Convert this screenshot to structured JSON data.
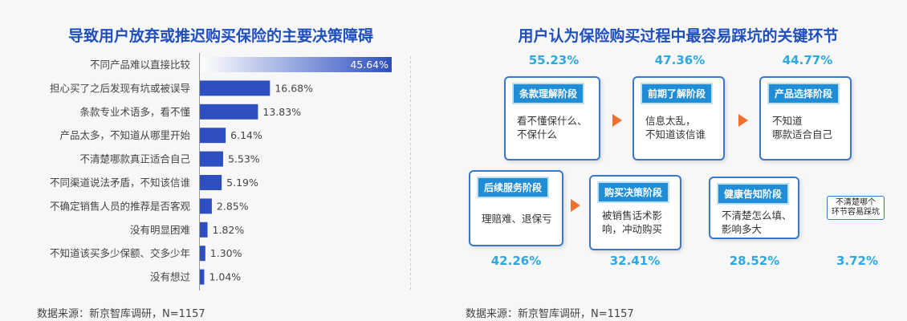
{
  "left": {
    "title": "导致用户放弃或推迟购买保险的主要决策障碍",
    "source": "数据来源：新京智库调研，N=1157"
  },
  "right": {
    "title": "用户认为保险购买过程中最容易踩坑的关键环节",
    "source": "数据来源：新京智库调研，N=1157",
    "stages": [
      {
        "tag": "条款理解阶段",
        "desc": "看不懂保什么、\n不保什么",
        "pct": "55.23%"
      },
      {
        "tag": "前期了解阶段",
        "desc": "信息太乱，\n不知道该信谁",
        "pct": "47.36%"
      },
      {
        "tag": "产品选择阶段",
        "desc": "不知道\n哪款适合自己",
        "pct": "44.77%"
      },
      {
        "tag": "后续服务阶段",
        "desc": "理赔难、退保亏",
        "pct": "42.26%"
      },
      {
        "tag": "购买决策阶段",
        "desc": "被销售话术影\n响，冲动购买",
        "pct": "32.41%"
      },
      {
        "tag": "健康告知阶段",
        "desc": "不清楚怎么填、\n影响多大",
        "pct": "28.52%"
      },
      {
        "tag": "",
        "desc": "不清楚哪个\n环节容易踩坑",
        "pct": "3.72%"
      }
    ],
    "arrow_color": "#f07030"
  },
  "chart_data": [
    {
      "type": "bar",
      "orientation": "horizontal",
      "title": "导致用户放弃或推迟购买保险的主要决策障碍",
      "categories": [
        "不同产品难以直接比较",
        "担心买了之后发现有坑或被误导",
        "条款专业术语多，看不懂",
        "产品太多，不知道从哪里开始",
        "不清楚哪款真正适合自己",
        "不同渠道说法矛盾，不知该信谁",
        "不确定销售人员的推荐是否客观",
        "没有明显困难",
        "不知道该买多少保额、交多少年",
        "没有想过"
      ],
      "values": [
        45.64,
        16.68,
        13.83,
        6.14,
        5.53,
        5.19,
        2.85,
        1.82,
        1.3,
        1.04
      ],
      "labels": [
        "45.64%",
        "16.68%",
        "13.83%",
        "6.14%",
        "5.53%",
        "5.19%",
        "2.85%",
        "1.82%",
        "1.30%",
        "1.04%"
      ],
      "xlim": [
        0,
        50
      ],
      "bar_color": "#2e4fbf"
    },
    {
      "type": "table",
      "title": "用户认为保险购买过程中最容易踩坑的关键环节",
      "categories": [
        "条款理解阶段",
        "前期了解阶段",
        "产品选择阶段",
        "后续服务阶段",
        "购买决策阶段",
        "健康告知阶段",
        "不清楚哪个环节容易踩坑"
      ],
      "values": [
        55.23,
        47.36,
        44.77,
        42.26,
        32.41,
        28.52,
        3.72
      ]
    }
  ]
}
